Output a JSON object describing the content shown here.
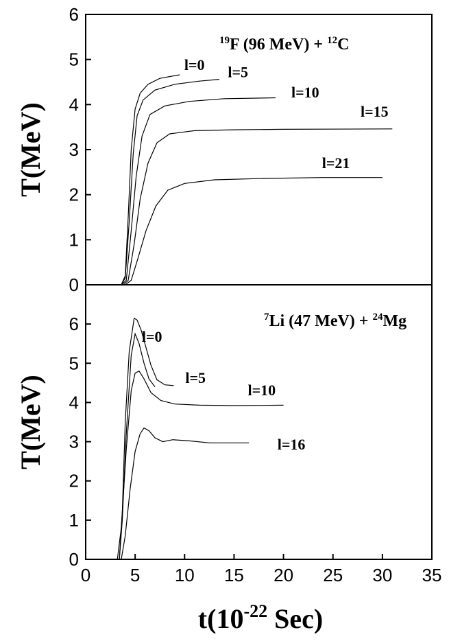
{
  "chart_data": [
    {
      "type": "line",
      "title_parts": {
        "iso1": "19",
        "el1": "F (96 MeV) + ",
        "iso2": "12",
        "el2": "C"
      },
      "ylabel": "T(MeV)",
      "xlim": [
        0,
        35
      ],
      "ylim": [
        0,
        6
      ],
      "y_ticks": [
        "0",
        "1",
        "2",
        "3",
        "4",
        "5",
        "6"
      ],
      "series": [
        {
          "name": "l=0",
          "label_at": [
            11.0,
            4.77
          ],
          "points": [
            [
              0,
              0
            ],
            [
              3.6,
              0
            ],
            [
              4.0,
              0.2
            ],
            [
              4.3,
              1.5
            ],
            [
              4.6,
              3.0
            ],
            [
              5.0,
              3.9
            ],
            [
              5.5,
              4.25
            ],
            [
              6.3,
              4.45
            ],
            [
              7.5,
              4.58
            ],
            [
              9.5,
              4.66
            ]
          ]
        },
        {
          "name": "l=5",
          "label_at": [
            15.4,
            4.61
          ],
          "points": [
            [
              0,
              0
            ],
            [
              3.6,
              0
            ],
            [
              4.0,
              0.15
            ],
            [
              4.4,
              1.4
            ],
            [
              4.8,
              2.9
            ],
            [
              5.2,
              3.75
            ],
            [
              5.8,
              4.1
            ],
            [
              7.0,
              4.32
            ],
            [
              9.0,
              4.45
            ],
            [
              11.5,
              4.52
            ],
            [
              13.5,
              4.56
            ]
          ]
        },
        {
          "name": "l=10",
          "label_at": [
            22.2,
            4.16
          ],
          "points": [
            [
              0,
              0
            ],
            [
              3.6,
              0
            ],
            [
              4.1,
              0.1
            ],
            [
              4.6,
              1.2
            ],
            [
              5.1,
              2.4
            ],
            [
              5.7,
              3.3
            ],
            [
              6.5,
              3.78
            ],
            [
              8.0,
              3.97
            ],
            [
              10.5,
              4.07
            ],
            [
              14.0,
              4.13
            ],
            [
              19.2,
              4.15
            ]
          ]
        },
        {
          "name": "l=15",
          "label_at": [
            29.2,
            3.73
          ],
          "points": [
            [
              0,
              0
            ],
            [
              3.8,
              0
            ],
            [
              4.3,
              0.1
            ],
            [
              4.9,
              0.9
            ],
            [
              5.5,
              1.9
            ],
            [
              6.3,
              2.7
            ],
            [
              7.2,
              3.15
            ],
            [
              8.5,
              3.35
            ],
            [
              11.0,
              3.42
            ],
            [
              15.0,
              3.44
            ],
            [
              20.0,
              3.45
            ],
            [
              31.0,
              3.46
            ]
          ]
        },
        {
          "name": "l=21",
          "label_at": [
            25.3,
            2.59
          ],
          "points": [
            [
              0,
              0
            ],
            [
              4.0,
              0
            ],
            [
              4.6,
              0.1
            ],
            [
              5.3,
              0.6
            ],
            [
              6.1,
              1.2
            ],
            [
              7.1,
              1.75
            ],
            [
              8.3,
              2.1
            ],
            [
              10.0,
              2.25
            ],
            [
              13.0,
              2.33
            ],
            [
              18.0,
              2.36
            ],
            [
              24.0,
              2.38
            ],
            [
              30.0,
              2.38
            ]
          ]
        }
      ]
    },
    {
      "type": "line",
      "title_parts": {
        "iso1": "7",
        "el1": "Li (47 MeV) + ",
        "iso2": "24",
        "el2": "Mg"
      },
      "xlabel_parts": {
        "pre": "t(10",
        "sup": "-22",
        "post": " Sec)"
      },
      "ylabel": "T(MeV)",
      "xlim": [
        0,
        35
      ],
      "ylim": [
        0,
        7
      ],
      "x_ticks": [
        "0",
        "5",
        "10",
        "15",
        "20",
        "25",
        "30",
        "35"
      ],
      "y_ticks": [
        "0",
        "1",
        "2",
        "3",
        "4",
        "5",
        "6"
      ],
      "series": [
        {
          "name": "l=0",
          "label_at": [
            6.7,
            5.55
          ],
          "points": [
            [
              0,
              0
            ],
            [
              3.4,
              0
            ],
            [
              3.7,
              1.2
            ],
            [
              4.0,
              3.5
            ],
            [
              4.4,
              5.3
            ],
            [
              4.9,
              6.15
            ],
            [
              5.2,
              6.1
            ],
            [
              5.6,
              5.85
            ],
            [
              6.1,
              5.4
            ],
            [
              6.6,
              4.95
            ],
            [
              7.2,
              4.58
            ],
            [
              8.0,
              4.45
            ],
            [
              8.9,
              4.43
            ]
          ]
        },
        {
          "name": "l=5",
          "label_at": [
            11.1,
            4.5
          ],
          "points": [
            [
              0,
              0
            ],
            [
              3.4,
              0
            ],
            [
              3.7,
              1.0
            ],
            [
              4.1,
              3.2
            ],
            [
              4.6,
              5.2
            ],
            [
              5.0,
              5.75
            ],
            [
              5.4,
              5.5
            ],
            [
              5.9,
              5.0
            ],
            [
              6.4,
              4.6
            ],
            [
              7.0,
              4.4
            ]
          ]
        },
        {
          "name": "l=10",
          "label_at": [
            17.8,
            4.18
          ],
          "points": [
            [
              0,
              0
            ],
            [
              3.2,
              0
            ],
            [
              3.6,
              0.8
            ],
            [
              4.1,
              2.8
            ],
            [
              4.6,
              4.3
            ],
            [
              5.0,
              4.75
            ],
            [
              5.4,
              4.8
            ],
            [
              5.9,
              4.6
            ],
            [
              6.6,
              4.25
            ],
            [
              7.6,
              4.05
            ],
            [
              9.0,
              3.96
            ],
            [
              11.5,
              3.93
            ],
            [
              15.0,
              3.92
            ],
            [
              20.0,
              3.93
            ]
          ]
        },
        {
          "name": "l=16",
          "label_at": [
            20.8,
            2.8
          ],
          "points": [
            [
              0,
              0
            ],
            [
              3.6,
              0
            ],
            [
              4.0,
              0.6
            ],
            [
              4.5,
              1.8
            ],
            [
              5.0,
              2.75
            ],
            [
              5.5,
              3.2
            ],
            [
              5.9,
              3.35
            ],
            [
              6.4,
              3.28
            ],
            [
              7.0,
              3.1
            ],
            [
              7.8,
              3.0
            ],
            [
              8.8,
              3.05
            ],
            [
              10.5,
              3.02
            ],
            [
              12.5,
              2.97
            ],
            [
              16.5,
              2.97
            ]
          ]
        }
      ]
    }
  ]
}
